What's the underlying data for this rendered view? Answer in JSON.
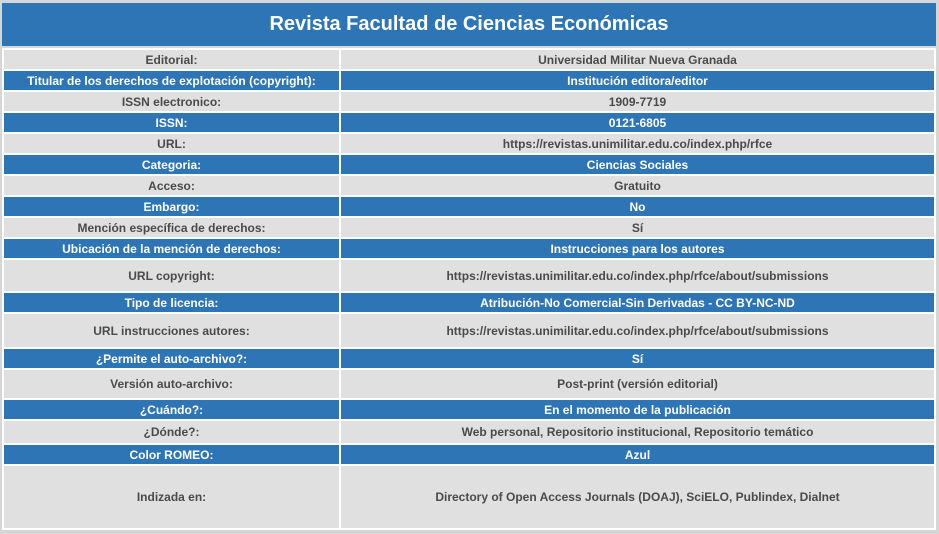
{
  "header": {
    "title": "Revista Facultad de Ciencias Económicas"
  },
  "rows": [
    {
      "label": "Editorial:",
      "value": "Universidad Militar Nueva Granada"
    },
    {
      "label": "Titular de los derechos de explotación (copyright):",
      "value": "Institución editora/editor"
    },
    {
      "label": "ISSN electronico:",
      "value": "1909-7719"
    },
    {
      "label": "ISSN:",
      "value": "0121-6805"
    },
    {
      "label": "URL:",
      "value": "https://revistas.unimilitar.edu.co/index.php/rfce"
    },
    {
      "label": "Categoria:",
      "value": "Ciencias Sociales"
    },
    {
      "label": "Acceso:",
      "value": "Gratuito"
    },
    {
      "label": "Embargo:",
      "value": "No"
    },
    {
      "label": "Mención específica de derechos:",
      "value": "Sí"
    },
    {
      "label": "Ubicación de la mención de derechos:",
      "value": "Instrucciones para los autores"
    },
    {
      "label": "URL copyright:",
      "value": "https://revistas.unimilitar.edu.co/index.php/rfce/about/submissions"
    },
    {
      "label": "Tipo de licencia:",
      "value": "Atribución-No Comercial-Sin Derivadas - CC BY-NC-ND"
    },
    {
      "label": "URL instrucciones autores:",
      "value": "https://revistas.unimilitar.edu.co/index.php/rfce/about/submissions"
    },
    {
      "label": "¿Permite el auto-archivo?:",
      "value": "Sí"
    },
    {
      "label": "Versión auto-archivo:",
      "value": "Post-print (versión editorial)"
    },
    {
      "label": "¿Cuándo?:",
      "value": "En el momento de la publicación"
    },
    {
      "label": "¿Dónde?:",
      "value": "Web personal, Repositorio institucional, Repositorio temático"
    },
    {
      "label": "Color ROMEO:",
      "value": "Azul"
    },
    {
      "label": "Indizada en:",
      "value": "Directory of Open Access Journals (DOAJ), SciELO, Publindex, Dialnet"
    }
  ],
  "colors": {
    "header_blue": "#2e75b6",
    "row_gray": "#e0e0e0",
    "gray_text": "#4a4a4a"
  }
}
